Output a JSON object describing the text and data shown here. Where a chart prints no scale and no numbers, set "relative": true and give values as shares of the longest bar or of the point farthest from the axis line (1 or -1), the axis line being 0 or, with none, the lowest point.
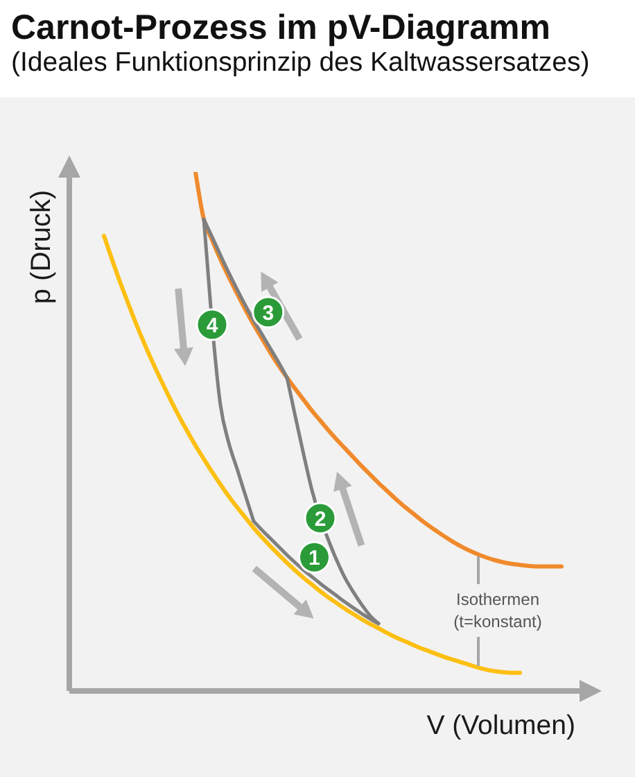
{
  "chart_data": {
    "type": "line",
    "title": "Carnot-Prozess im pV-Diagramm",
    "subtitle": "(Ideales Funktionsprinzip des Kaltwassersatzes)",
    "xlabel": "V (Volumen)",
    "ylabel": "p (Druck)",
    "relative": true,
    "line_style": "solid",
    "categories": [
      null,
      null,
      null,
      null,
      null,
      null,
      null,
      null,
      null,
      null,
      null,
      null,
      null,
      null,
      null,
      null,
      null,
      null,
      null,
      null,
      null,
      null,
      null,
      null,
      null,
      null,
      null,
      null,
      null,
      null,
      null,
      null,
      null,
      null,
      null,
      null,
      null,
      null,
      null,
      null,
      null,
      null,
      null,
      null,
      null,
      null,
      null,
      null,
      null,
      null,
      null,
      null,
      null,
      null,
      null,
      null
    ],
    "series": [
      {
        "color": "#fdbf12",
        "values": [
          0.877,
          0.83,
          0.785,
          0.743,
          0.702,
          0.664,
          0.628,
          0.594,
          0.561,
          0.53,
          0.501,
          0.473,
          0.447,
          0.422,
          0.398,
          0.375,
          0.354,
          0.334,
          0.314,
          0.296,
          0.279,
          0.263,
          0.247,
          0.232,
          0.218,
          0.205,
          0.192,
          0.18,
          0.169,
          0.158,
          0.148,
          0.138,
          0.129,
          0.121,
          0.112,
          0.104,
          0.097,
          0.09,
          0.083,
          0.077,
          0.071,
          0.065,
          0.06,
          0.055,
          0.05,
          0.045,
          0.041,
          0.038,
          0.036,
          0.035,
          0.035,
          null,
          null,
          null,
          null,
          null
        ]
      },
      {
        "color": "#f08a2c",
        "values": [
          null,
          null,
          null,
          null,
          null,
          null,
          null,
          null,
          null,
          null,
          null,
          1.0,
          0.909,
          0.869,
          0.832,
          0.798,
          0.766,
          0.735,
          0.706,
          0.679,
          0.652,
          0.627,
          0.604,
          0.582,
          0.561,
          0.54,
          0.521,
          0.502,
          0.484,
          0.467,
          0.45,
          0.433,
          0.417,
          0.401,
          0.386,
          0.371,
          0.357,
          0.344,
          0.331,
          0.319,
          0.308,
          0.297,
          0.287,
          0.278,
          0.27,
          0.263,
          0.257,
          0.252,
          0.248,
          0.245,
          0.243,
          0.241,
          0.24,
          0.24,
          0.24,
          0.24
        ]
      },
      {
        "name": "1",
        "color": "#7f7f7f",
        "values": [
          null,
          null,
          null,
          null,
          null,
          null,
          null,
          null,
          null,
          null,
          null,
          null,
          null,
          null,
          null,
          null,
          null,
          null,
          0.327,
          0.31,
          0.294,
          0.278,
          0.262,
          0.247,
          0.233,
          0.22,
          0.207,
          0.195,
          0.183,
          0.171,
          0.16,
          0.149,
          0.139,
          0.13,
          null,
          null,
          null,
          null,
          null,
          null,
          null,
          null,
          null,
          null,
          null,
          null,
          null,
          null,
          null,
          null,
          null,
          null,
          null,
          null,
          null,
          null
        ]
      },
      {
        "name": "2",
        "color": "#7f7f7f",
        "values": [
          null,
          null,
          null,
          null,
          null,
          null,
          null,
          null,
          null,
          null,
          null,
          null,
          null,
          null,
          null,
          null,
          null,
          null,
          null,
          null,
          null,
          null,
          0.604,
          0.529,
          0.456,
          0.387,
          0.333,
          0.29,
          0.251,
          0.217,
          0.19,
          0.166,
          0.145,
          0.13,
          null,
          null,
          null,
          null,
          null,
          null,
          null,
          null,
          null,
          null,
          null,
          null,
          null,
          null,
          null,
          null,
          null,
          null,
          null,
          null,
          null,
          null
        ]
      },
      {
        "name": "3",
        "color": "#7f7f7f",
        "values": [
          null,
          null,
          null,
          null,
          null,
          null,
          null,
          null,
          null,
          null,
          null,
          null,
          0.909,
          0.875,
          0.84,
          0.806,
          0.774,
          0.743,
          0.714,
          0.687,
          0.66,
          0.633,
          0.604,
          null,
          null,
          null,
          null,
          null,
          null,
          null,
          null,
          null,
          null,
          null,
          null,
          null,
          null,
          null,
          null,
          null,
          null,
          null,
          null,
          null,
          null,
          null,
          null,
          null,
          null,
          null,
          null,
          null,
          null,
          null,
          null,
          null
        ]
      },
      {
        "name": "4",
        "color": "#7f7f7f",
        "values": [
          null,
          null,
          null,
          null,
          null,
          null,
          null,
          null,
          null,
          null,
          null,
          null,
          0.909,
          0.706,
          0.551,
          0.478,
          0.428,
          0.377,
          0.327,
          null,
          null,
          null,
          null,
          null,
          null,
          null,
          null,
          null,
          null,
          null,
          null,
          null,
          null,
          null,
          null,
          null,
          null,
          null,
          null,
          null,
          null,
          null,
          null,
          null,
          null,
          null,
          null,
          null,
          null,
          null,
          null,
          null,
          null,
          null,
          null,
          null
        ]
      }
    ],
    "annotations": [
      "Isothermen (t=konstant)"
    ]
  }
}
